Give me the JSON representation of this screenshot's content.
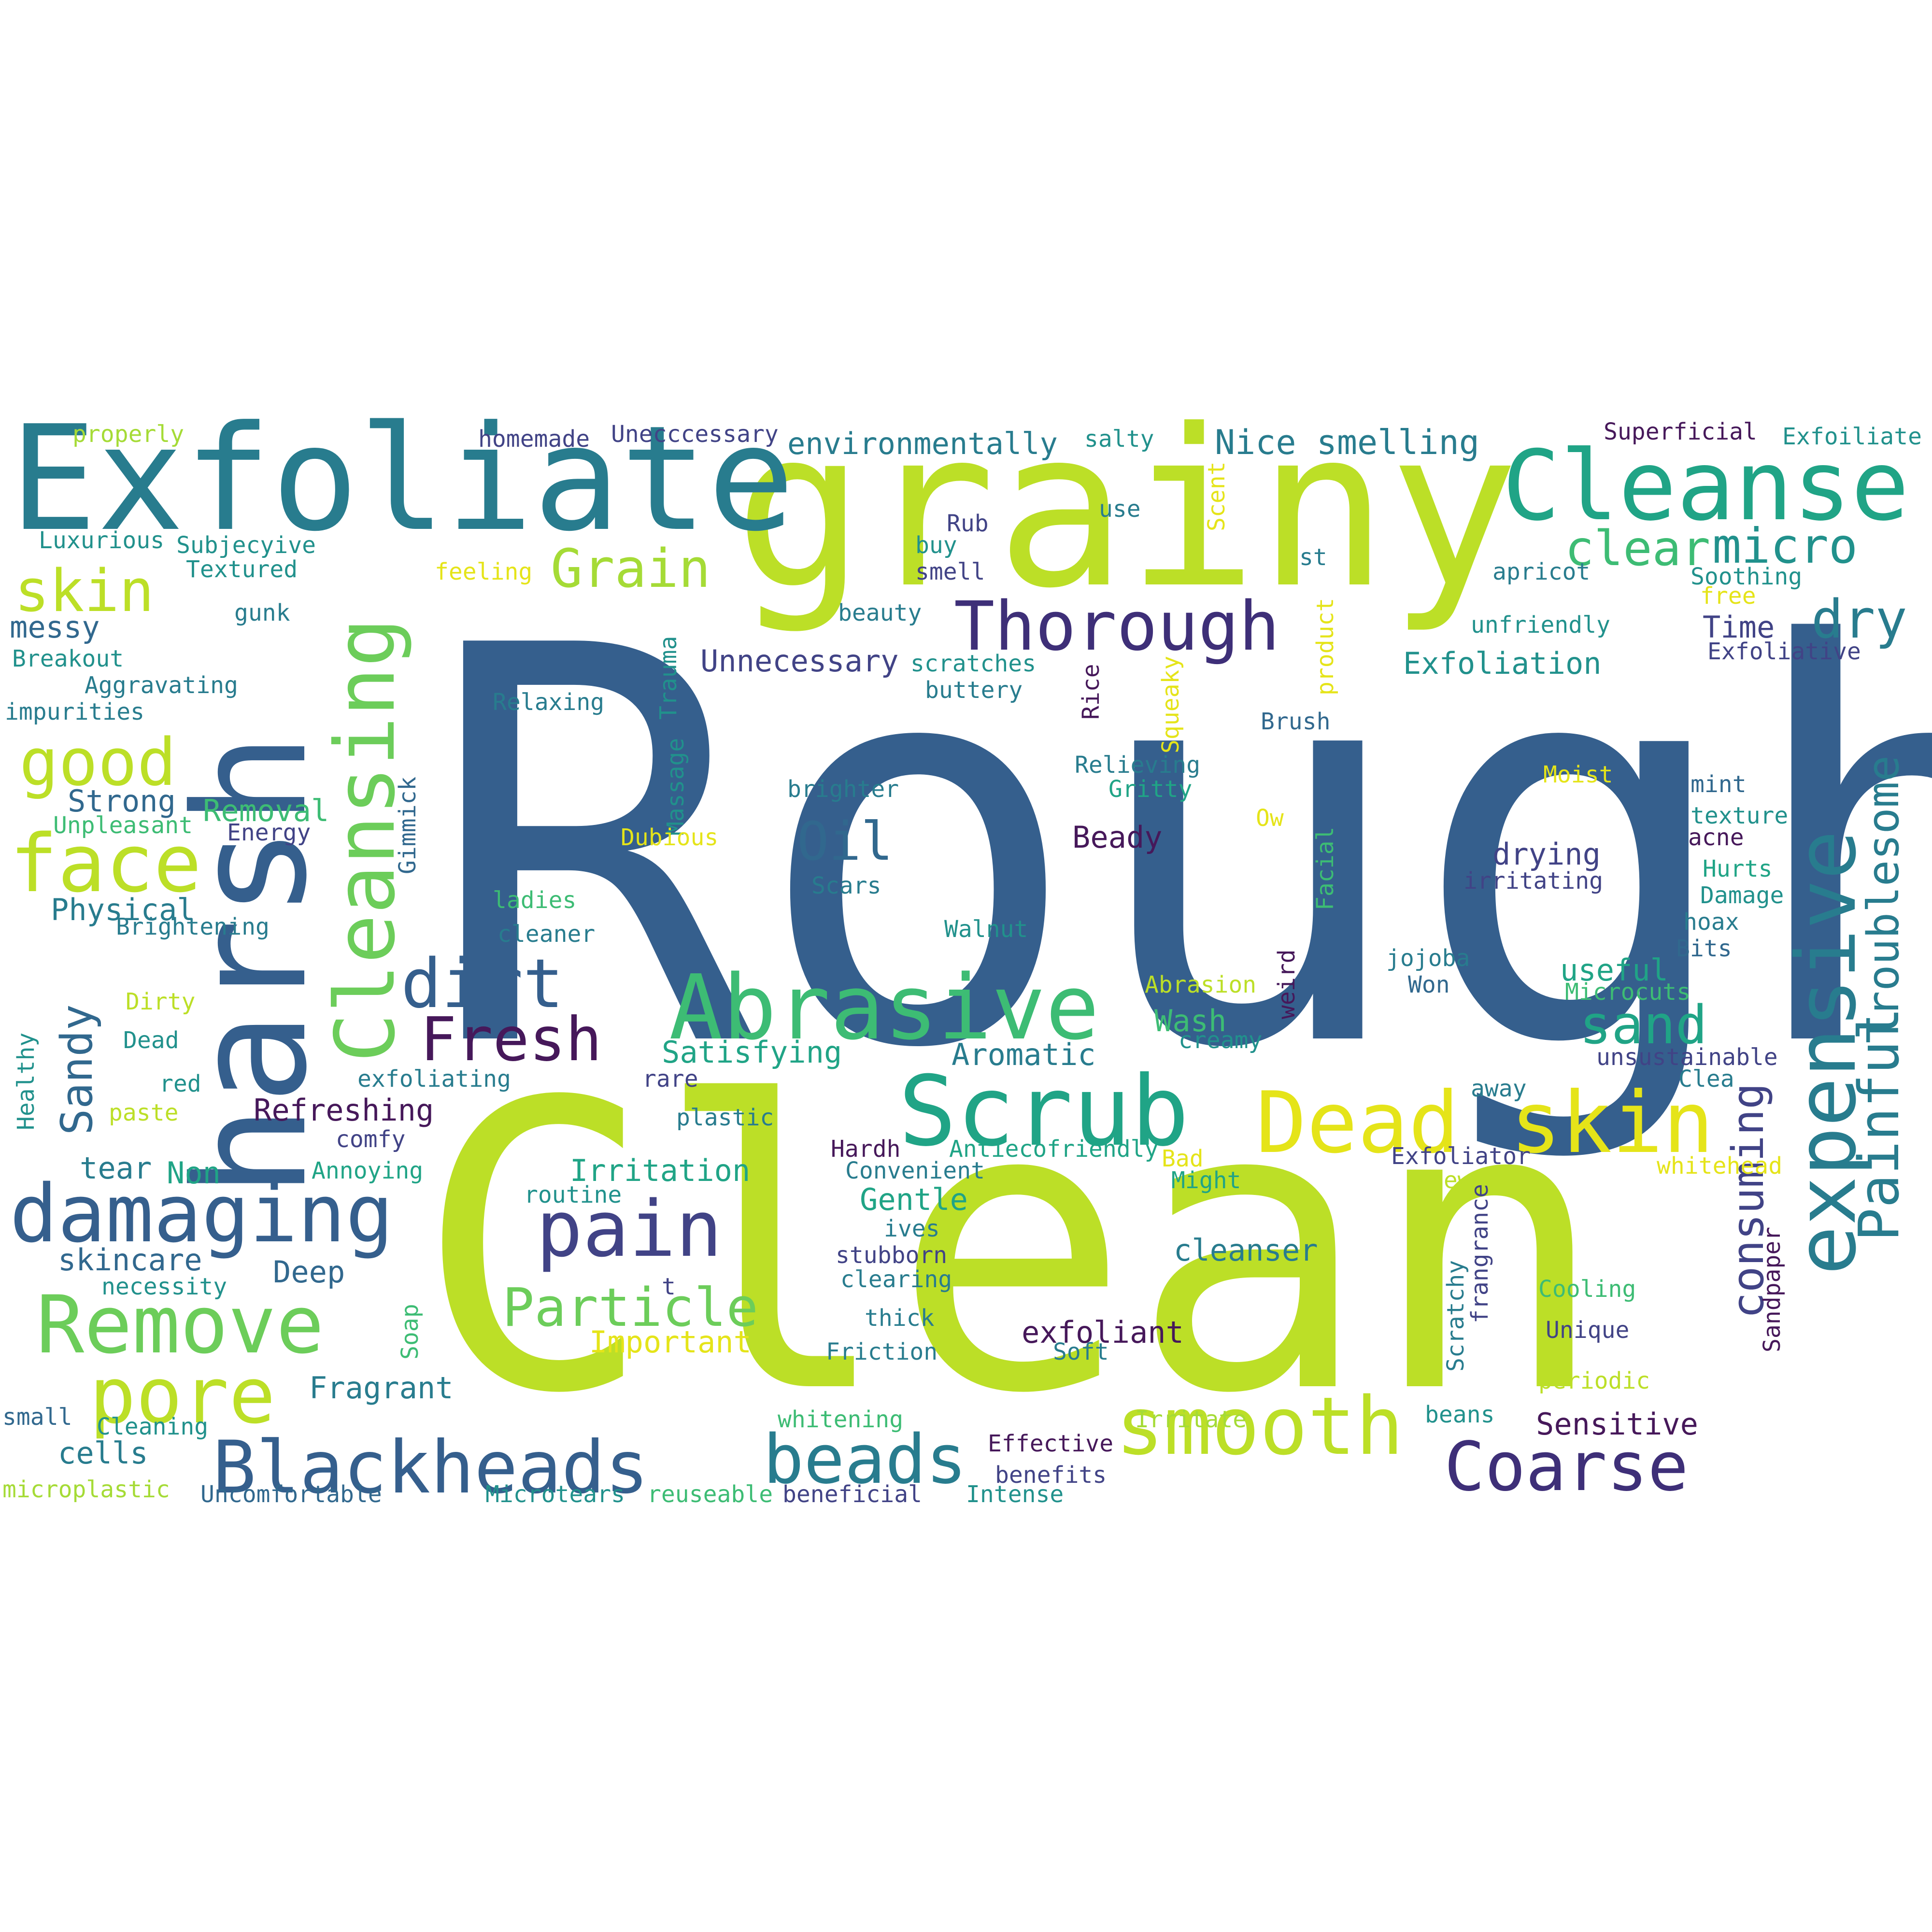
{
  "cloud": {
    "palette": {
      "navy-purple": "#46185a",
      "deep-purple": "#3e2f78",
      "indigo": "#414386",
      "slate-blue": "#355f8d",
      "steel-blue": "#31688e",
      "teal-blue": "#287c8e",
      "teal": "#21918c",
      "sea-green": "#20a486",
      "green": "#3dbc74",
      "light-green": "#6ccd5a",
      "lime": "#a5db36",
      "yellow-green": "#bcdf27",
      "yellow": "#e5e419"
    },
    "words": [
      "Rough",
      "Clean",
      "grainy",
      "harsh",
      "Exfoliate",
      "Cleanse",
      "Cleansing",
      "Scrub",
      "Abrasive",
      "Dead skin",
      "expensive",
      "damaging",
      "Remove",
      "smooth",
      "Blackheads",
      "Thorough",
      "pain",
      "face",
      "pore",
      "Painful",
      "Troublesome",
      "consuming",
      "beads",
      "Coarse",
      "clear",
      "micro",
      "dry",
      "skin",
      "Grain",
      "good",
      "dirt",
      "Fresh",
      "Oil",
      "sand",
      "Sandy",
      "Particle",
      "Nice smelling",
      "environmentally",
      "Exfoliation",
      "Unnecessary",
      "Irritation",
      "Satisfying",
      "Strong",
      "Removal",
      "Beady",
      "drying",
      "Physical",
      "Refreshing",
      "cleanser",
      "exfoliant",
      "Important",
      "Fragrant",
      "Sensitive",
      "Gentle",
      "Aromatic",
      "Wash",
      "useful",
      "messy",
      "skincare",
      "cells",
      "Deep",
      "tear",
      "Non",
      "Time",
      "homemade",
      "Unecccessary",
      "salty",
      "Superficial",
      "Exfoiliate",
      "properly",
      "Luxurious",
      "Subjecyive",
      "Textured",
      "feeling",
      "Rub",
      "use",
      "buy",
      "smell",
      "st",
      "apricot",
      "Soothing",
      "free",
      "beauty",
      "gunk",
      "Breakout",
      "unfriendly",
      "Exfoliative",
      "Aggravating",
      "impurities",
      "scratches",
      "buttery",
      "Relaxing",
      "Trauma",
      "Massage",
      "Rice",
      "Squeaky",
      "product",
      "Scent",
      "Brush",
      "Relieving",
      "Gritty",
      "brighter",
      "Moist",
      "mint",
      "Gimmick",
      "Unpleasant",
      "Energy",
      "Dubious",
      "Ow",
      "texture",
      "acne",
      "Facial",
      "irritating",
      "Hurts",
      "Damage",
      "Scars",
      "ladies",
      "cleaner",
      "Brightening",
      "Walnut",
      "hoax",
      "Bits",
      "jojoba",
      "Won",
      "weird",
      "Abrasion",
      "Microcuts",
      "Dirty",
      "Healthy",
      "Dead",
      "creamy",
      "unsustainable",
      "Clea",
      "red",
      "exfoliating",
      "rare",
      "away",
      "paste",
      "comfy",
      "plastic",
      "Hardh",
      "Antiecofriendly",
      "Bad",
      "Exfoliator",
      "Annoying",
      "Convenient",
      "Might",
      "new",
      "whitehead",
      "routine",
      "ives",
      "stubborn",
      "clearing",
      "frangrance",
      "Sandpaper",
      "necessity",
      "t",
      "Scratchy",
      "Cooling",
      "thick",
      "Unique",
      "Soap",
      "Friction",
      "Soft",
      "periodic",
      "small",
      "Cleaning",
      "whitening",
      "Irritate",
      "beans",
      "Effective",
      "benefits",
      "microplastic",
      "Uncomfortable",
      "Microtears",
      "reuseable",
      "beneficial",
      "Intense"
    ]
  }
}
